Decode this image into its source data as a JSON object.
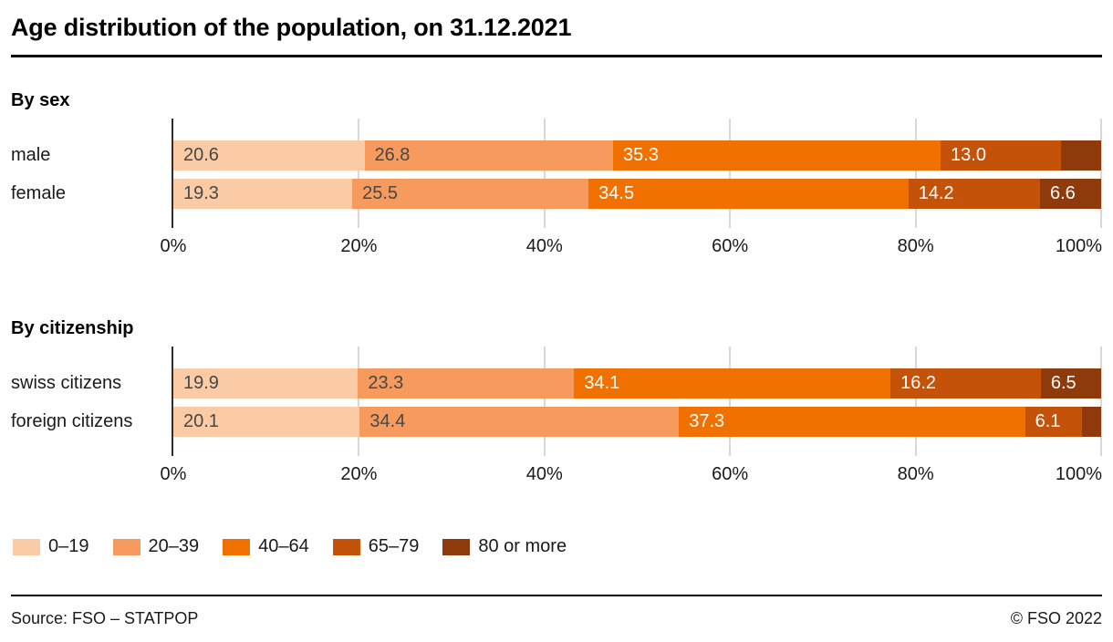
{
  "title": "Age distribution of the population, on 31.12.2021",
  "colors": {
    "age_0_19": "#FACBA4",
    "age_20_39": "#F69B5D",
    "age_40_64": "#F07100",
    "age_65_79": "#C45208",
    "age_80_plus": "#8E3A0A",
    "gridline": "#D8D8D8",
    "axis_line": "#2E2E2E",
    "label_dark": "#474747",
    "label_light": "#FFFFFF"
  },
  "axis": {
    "ticks": [
      {
        "pct": 0,
        "label": "0%"
      },
      {
        "pct": 20,
        "label": "20%"
      },
      {
        "pct": 40,
        "label": "40%"
      },
      {
        "pct": 60,
        "label": "60%"
      },
      {
        "pct": 80,
        "label": "80%"
      },
      {
        "pct": 100,
        "label": "100%"
      }
    ]
  },
  "chart_data": [
    {
      "type": "bar",
      "stacked": true,
      "orientation": "horizontal",
      "section": "By sex",
      "categories": [
        "male",
        "female"
      ],
      "xlim": [
        0,
        100
      ],
      "grid": true,
      "series": [
        {
          "name": "0–19",
          "color": "#FACBA4",
          "label_color": "#474747",
          "values": [
            20.6,
            19.3
          ],
          "labels": [
            "20.6",
            "19.3"
          ]
        },
        {
          "name": "20–39",
          "color": "#F69B5D",
          "label_color": "#474747",
          "values": [
            26.8,
            25.5
          ],
          "labels": [
            "26.8",
            "25.5"
          ]
        },
        {
          "name": "40–64",
          "color": "#F07100",
          "label_color": "#FFFFFF",
          "values": [
            35.3,
            34.5
          ],
          "labels": [
            "35.3",
            "34.5"
          ]
        },
        {
          "name": "65–79",
          "color": "#C45208",
          "label_color": "#FFFFFF",
          "values": [
            13.0,
            14.2
          ],
          "labels": [
            "13.0",
            "14.2"
          ]
        },
        {
          "name": "80 or more",
          "color": "#8E3A0A",
          "label_color": "#FFFFFF",
          "values": [
            4.3,
            6.6
          ],
          "labels": [
            "",
            "6.6"
          ]
        }
      ]
    },
    {
      "type": "bar",
      "stacked": true,
      "orientation": "horizontal",
      "section": "By citizenship",
      "categories": [
        "swiss citizens",
        "foreign citizens"
      ],
      "xlim": [
        0,
        100
      ],
      "grid": true,
      "series": [
        {
          "name": "0–19",
          "color": "#FACBA4",
          "label_color": "#474747",
          "values": [
            19.9,
            20.1
          ],
          "labels": [
            "19.9",
            "20.1"
          ]
        },
        {
          "name": "20–39",
          "color": "#F69B5D",
          "label_color": "#474747",
          "values": [
            23.3,
            34.4
          ],
          "labels": [
            "23.3",
            "34.4"
          ]
        },
        {
          "name": "40–64",
          "color": "#F07100",
          "label_color": "#FFFFFF",
          "values": [
            34.1,
            37.3
          ],
          "labels": [
            "34.1",
            "37.3"
          ]
        },
        {
          "name": "65–79",
          "color": "#C45208",
          "label_color": "#FFFFFF",
          "values": [
            16.2,
            6.1
          ],
          "labels": [
            "16.2",
            "6.1"
          ]
        },
        {
          "name": "80 or more",
          "color": "#8E3A0A",
          "label_color": "#FFFFFF",
          "values": [
            6.5,
            2.1
          ],
          "labels": [
            "6.5",
            ""
          ]
        }
      ]
    }
  ],
  "legend": [
    {
      "label": "0–19",
      "color": "#FACBA4"
    },
    {
      "label": "20–39",
      "color": "#F69B5D"
    },
    {
      "label": "40–64",
      "color": "#F07100"
    },
    {
      "label": "65–79",
      "color": "#C45208"
    },
    {
      "label": "80 or more",
      "color": "#8E3A0A"
    }
  ],
  "footer": {
    "source": "Source: FSO – STATPOP",
    "copyright": "© FSO 2022"
  }
}
